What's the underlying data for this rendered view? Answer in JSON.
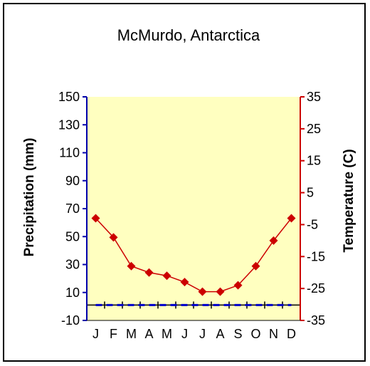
{
  "chart_data": {
    "type": "line",
    "title": "McMurdo, Antarctica",
    "categories": [
      "J",
      "F",
      "M",
      "A",
      "M",
      "J",
      "J",
      "A",
      "S",
      "O",
      "N",
      "D"
    ],
    "ylabel": "Precipitation (mm)",
    "ylabel_right": "Temperature (C)",
    "ylim": [
      -10,
      150
    ],
    "yticks": [
      "150",
      "130",
      "110",
      "90",
      "70",
      "50",
      "30",
      "10",
      "-10"
    ],
    "ylim_right": [
      -35,
      35
    ],
    "yticks_right": [
      "35",
      "25",
      "15",
      "5",
      "-5",
      "-15",
      "-25",
      "-35"
    ],
    "grid": false,
    "series": [
      {
        "axis": "right",
        "kind": "line-with-diamond-markers",
        "color": "#cc0000",
        "values": [
          -3,
          -9,
          -18,
          -20,
          -21,
          -23,
          -26,
          -26,
          -24,
          -18,
          -10,
          -3
        ]
      },
      {
        "axis": "left",
        "kind": "dashed-line",
        "color": "#0000cc",
        "values": [
          1,
          1,
          1,
          1,
          1,
          1,
          1,
          1,
          1,
          1,
          1,
          1
        ]
      }
    ],
    "colors": {
      "plot_background": "#ffffc0",
      "left_axis": "#0000aa",
      "right_axis": "#cc0000"
    }
  }
}
